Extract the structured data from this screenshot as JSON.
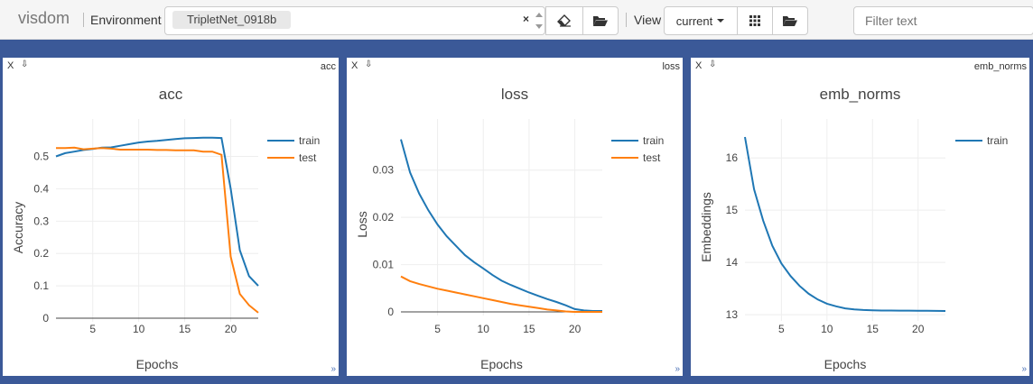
{
  "app": {
    "brand": "visdom"
  },
  "toolbar": {
    "environment_label": "Environment",
    "environment_value": "TripletNet_0918b",
    "clear_symbol": "×",
    "view_label": "View",
    "view_value": "current",
    "filter_placeholder": "Filter text"
  },
  "icons": {
    "eraser": "eraser-icon",
    "folder": "folder-open-icon",
    "grid": "grid-icon",
    "close": "close-icon",
    "download": "download-icon",
    "resize": "resize-icon"
  },
  "colors": {
    "background": "#3b5998",
    "train": "#1f77b4",
    "test": "#ff7f0e"
  },
  "panes": [
    {
      "close": "X",
      "download": "⇩",
      "window_name": "acc",
      "resize": "»"
    },
    {
      "close": "X",
      "download": "⇩",
      "window_name": "loss",
      "resize": "»"
    },
    {
      "close": "X",
      "download": "⇩",
      "window_name": "emb_norms",
      "resize": "»"
    }
  ],
  "chart_data": [
    {
      "type": "line",
      "title": "acc",
      "xlabel": "Epochs",
      "ylabel": "Accuracy",
      "xlim": [
        1,
        23
      ],
      "ylim": [
        0,
        0.56
      ],
      "xticks": [
        5,
        10,
        15,
        20
      ],
      "yticks": [
        0,
        0.1,
        0.2,
        0.3,
        0.4,
        0.5
      ],
      "ytick_labels": [
        "0",
        "0.1",
        "0.2",
        "0.3",
        "0.4",
        "0.5"
      ],
      "legend_position": "top-right",
      "series": [
        {
          "name": "train",
          "color": "#1f77b4",
          "x": [
            1,
            2,
            3,
            4,
            5,
            6,
            7,
            8,
            9,
            10,
            11,
            12,
            13,
            14,
            15,
            16,
            17,
            18,
            19,
            20,
            21,
            22,
            23
          ],
          "y": [
            0.5,
            0.51,
            0.515,
            0.52,
            0.523,
            0.527,
            0.528,
            0.533,
            0.538,
            0.543,
            0.546,
            0.548,
            0.551,
            0.554,
            0.556,
            0.557,
            0.558,
            0.558,
            0.557,
            0.4,
            0.21,
            0.13,
            0.1
          ]
        },
        {
          "name": "test",
          "color": "#ff7f0e",
          "x": [
            1,
            2,
            3,
            4,
            5,
            6,
            7,
            8,
            9,
            10,
            11,
            12,
            13,
            14,
            15,
            16,
            17,
            18,
            19,
            20,
            21,
            22,
            23
          ],
          "y": [
            0.526,
            0.526,
            0.527,
            0.522,
            0.524,
            0.526,
            0.524,
            0.521,
            0.521,
            0.521,
            0.521,
            0.52,
            0.52,
            0.519,
            0.519,
            0.519,
            0.515,
            0.515,
            0.505,
            0.19,
            0.075,
            0.04,
            0.017
          ]
        }
      ]
    },
    {
      "type": "line",
      "title": "loss",
      "xlabel": "Epochs",
      "ylabel": "Loss",
      "xlim": [
        1,
        23
      ],
      "ylim": [
        0,
        0.037
      ],
      "xticks": [
        5,
        10,
        15,
        20
      ],
      "yticks": [
        0,
        0.01,
        0.02,
        0.03
      ],
      "ytick_labels": [
        "0",
        "0.01",
        "0.02",
        "0.03"
      ],
      "legend_position": "top-right",
      "series": [
        {
          "name": "train",
          "color": "#1f77b4",
          "x": [
            1,
            2,
            3,
            4,
            5,
            6,
            7,
            8,
            9,
            10,
            11,
            12,
            13,
            14,
            15,
            16,
            17,
            18,
            19,
            20,
            21,
            22,
            23
          ],
          "y": [
            0.0365,
            0.0295,
            0.025,
            0.0215,
            0.0185,
            0.016,
            0.014,
            0.012,
            0.0105,
            0.0092,
            0.0078,
            0.0066,
            0.0057,
            0.0049,
            0.0041,
            0.0034,
            0.0027,
            0.0021,
            0.0014,
            0.0006,
            0.0003,
            0.0002,
            0.0002
          ]
        },
        {
          "name": "test",
          "color": "#ff7f0e",
          "x": [
            1,
            2,
            3,
            4,
            5,
            6,
            7,
            8,
            9,
            10,
            11,
            12,
            13,
            14,
            15,
            16,
            17,
            18,
            19,
            20,
            21,
            22,
            23
          ],
          "y": [
            0.0075,
            0.0065,
            0.0059,
            0.0054,
            0.0049,
            0.0045,
            0.0041,
            0.0037,
            0.0033,
            0.0029,
            0.0025,
            0.0021,
            0.0017,
            0.0014,
            0.0011,
            0.0008,
            0.0005,
            0.0003,
            0.0001,
            0.0,
            0.0,
            0.0,
            0.0
          ]
        }
      ]
    },
    {
      "type": "line",
      "title": "emb_norms",
      "xlabel": "Epochs",
      "ylabel": "Embeddings",
      "xlim": [
        1,
        23
      ],
      "ylim": [
        12.95,
        16.4
      ],
      "xticks": [
        5,
        10,
        15,
        20
      ],
      "yticks": [
        13,
        14,
        15,
        16
      ],
      "ytick_labels": [
        "13",
        "14",
        "15",
        "16"
      ],
      "legend_position": "top-right",
      "series": [
        {
          "name": "train",
          "color": "#1f77b4",
          "x": [
            1,
            2,
            3,
            4,
            5,
            6,
            7,
            8,
            9,
            10,
            11,
            12,
            13,
            14,
            15,
            16,
            17,
            18,
            19,
            20,
            21,
            22,
            23
          ],
          "y": [
            16.4,
            15.4,
            14.8,
            14.32,
            13.98,
            13.74,
            13.55,
            13.4,
            13.29,
            13.21,
            13.16,
            13.12,
            13.1,
            13.09,
            13.085,
            13.08,
            13.08,
            13.078,
            13.077,
            13.076,
            13.075,
            13.073,
            13.07
          ]
        }
      ]
    }
  ]
}
